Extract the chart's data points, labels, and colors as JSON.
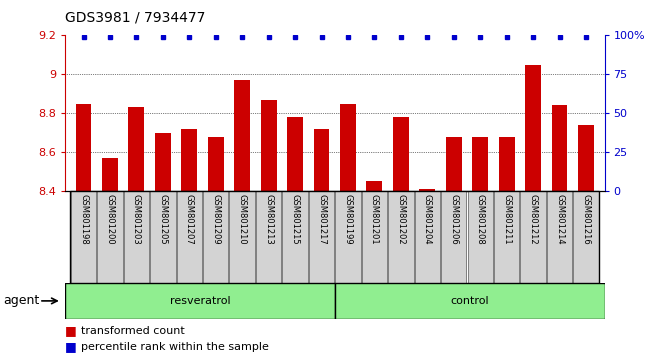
{
  "title": "GDS3981 / 7934477",
  "samples": [
    "GSM801198",
    "GSM801200",
    "GSM801203",
    "GSM801205",
    "GSM801207",
    "GSM801209",
    "GSM801210",
    "GSM801213",
    "GSM801215",
    "GSM801217",
    "GSM801199",
    "GSM801201",
    "GSM801202",
    "GSM801204",
    "GSM801206",
    "GSM801208",
    "GSM801211",
    "GSM801212",
    "GSM801214",
    "GSM801216"
  ],
  "bar_values": [
    8.85,
    8.57,
    8.83,
    8.7,
    8.72,
    8.68,
    8.97,
    8.87,
    8.78,
    8.72,
    8.85,
    8.45,
    8.78,
    8.41,
    8.68,
    8.68,
    8.68,
    9.05,
    8.84,
    8.74
  ],
  "percentile_values": [
    99,
    99,
    99,
    99,
    99,
    99,
    99,
    99,
    99,
    99,
    99,
    99,
    99,
    99,
    99,
    99,
    99,
    99,
    99,
    99
  ],
  "bar_color": "#cc0000",
  "dot_color": "#0000cc",
  "ylim_left": [
    8.4,
    9.2
  ],
  "ylim_right": [
    0,
    100
  ],
  "yticks_left": [
    8.4,
    8.6,
    8.8,
    9.0,
    9.2
  ],
  "ytick_labels_left": [
    "8.4",
    "8.6",
    "8.8",
    "9",
    "9.2"
  ],
  "yticks_right": [
    0,
    25,
    50,
    75,
    100
  ],
  "ytick_labels_right": [
    "0",
    "25",
    "50",
    "75",
    "100%"
  ],
  "group1_label": "resveratrol",
  "group2_label": "control",
  "group1_count": 10,
  "group2_count": 10,
  "agent_label": "agent",
  "legend_bar_label": "transformed count",
  "legend_dot_label": "percentile rank within the sample",
  "bar_width": 0.6,
  "bar_bottom": 8.4,
  "tick_fontsize": 8,
  "label_fontsize": 9,
  "sample_fontsize": 6,
  "group_fontsize": 8,
  "title_fontsize": 10,
  "dotted_gridlines": [
    8.6,
    8.8,
    9.0
  ],
  "box_facecolor": "#d3d3d3",
  "box_edgecolor": "#555555",
  "group_facecolor": "#90ee90",
  "group_edgecolor": "#228B22"
}
